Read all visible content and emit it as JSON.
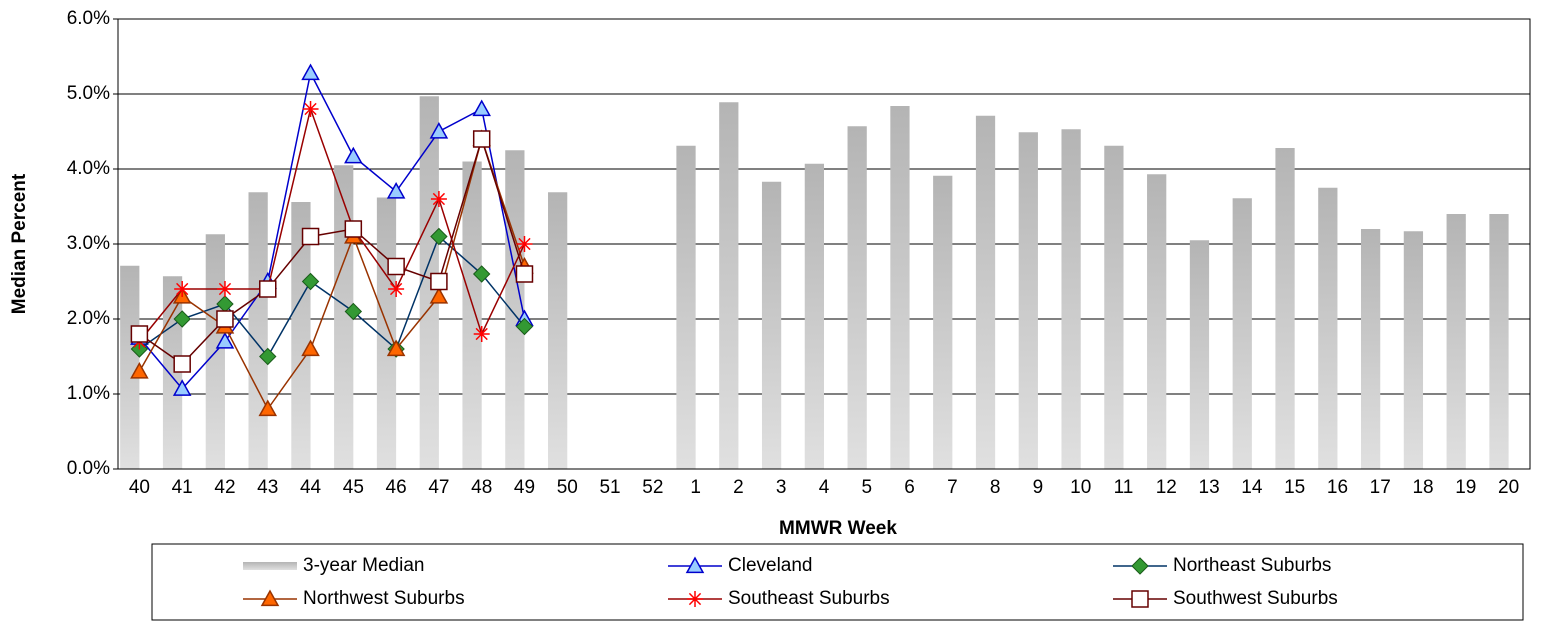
{
  "chart_data": {
    "type": "bar",
    "y_label": "Median Percent",
    "x_label": "MMWR Week",
    "categories": [
      "40",
      "41",
      "42",
      "43",
      "44",
      "45",
      "46",
      "47",
      "48",
      "49",
      "50",
      "51",
      "52",
      "1",
      "2",
      "3",
      "4",
      "5",
      "6",
      "7",
      "8",
      "9",
      "10",
      "11",
      "12",
      "13",
      "14",
      "15",
      "16",
      "17",
      "18",
      "19",
      "20"
    ],
    "ylim": [
      0,
      6
    ],
    "yticks": [
      {
        "value": 0,
        "label": "0.0%"
      },
      {
        "value": 1,
        "label": "1.0%"
      },
      {
        "value": 2,
        "label": "2.0%"
      },
      {
        "value": 3,
        "label": "3.0%"
      },
      {
        "value": 4,
        "label": "4.0%"
      },
      {
        "value": 5,
        "label": "5.0%"
      },
      {
        "value": 6,
        "label": "6.0%"
      }
    ],
    "grid": true,
    "series": [
      {
        "name": "3-year Median",
        "type": "bar",
        "color": "#b4b4b4",
        "values": [
          2.71,
          2.57,
          3.13,
          3.69,
          3.56,
          4.05,
          3.62,
          4.97,
          4.1,
          4.25,
          3.69,
          null,
          null,
          4.31,
          4.89,
          3.83,
          4.07,
          4.57,
          4.84,
          3.91,
          4.71,
          4.49,
          4.53,
          4.31,
          3.93,
          3.05,
          3.61,
          4.28,
          3.75,
          3.2,
          3.17,
          3.4,
          3.4
        ]
      },
      {
        "name": "Cleveland",
        "type": "line",
        "color": "#0000cc",
        "marker": "triangle",
        "marker_color": "#99ccff",
        "values": [
          1.75,
          1.07,
          1.7,
          2.5,
          5.28,
          4.17,
          3.7,
          4.5,
          4.8,
          2.0,
          null,
          null,
          null,
          null,
          null,
          null,
          null,
          null,
          null,
          null,
          null,
          null,
          null,
          null,
          null,
          null,
          null,
          null,
          null,
          null,
          null,
          null,
          null
        ]
      },
      {
        "name": "Northeast Suburbs",
        "type": "line",
        "color": "#003366",
        "marker": "diamond",
        "marker_color": "#339933",
        "values": [
          1.6,
          2.0,
          2.2,
          1.5,
          2.5,
          2.1,
          1.6,
          3.1,
          2.6,
          1.9,
          null,
          null,
          null,
          null,
          null,
          null,
          null,
          null,
          null,
          null,
          null,
          null,
          null,
          null,
          null,
          null,
          null,
          null,
          null,
          null,
          null,
          null,
          null
        ]
      },
      {
        "name": "Northwest Suburbs",
        "type": "line",
        "color": "#993300",
        "marker": "triangle",
        "marker_color": "#ff6600",
        "values": [
          1.3,
          2.3,
          1.9,
          0.8,
          1.6,
          3.1,
          1.6,
          2.3,
          4.4,
          2.7,
          null,
          null,
          null,
          null,
          null,
          null,
          null,
          null,
          null,
          null,
          null,
          null,
          null,
          null,
          null,
          null,
          null,
          null,
          null,
          null,
          null,
          null,
          null
        ]
      },
      {
        "name": "Southeast Suburbs",
        "type": "line",
        "color": "#990000",
        "marker": "star",
        "marker_color": "#ff0000",
        "values": [
          1.7,
          2.4,
          2.4,
          2.4,
          4.8,
          3.2,
          2.4,
          3.6,
          1.8,
          3.0,
          null,
          null,
          null,
          null,
          null,
          null,
          null,
          null,
          null,
          null,
          null,
          null,
          null,
          null,
          null,
          null,
          null,
          null,
          null,
          null,
          null,
          null,
          null
        ]
      },
      {
        "name": "Southwest Suburbs",
        "type": "line",
        "color": "#660000",
        "marker": "square",
        "marker_color": "#ffffff",
        "values": [
          1.8,
          1.4,
          2.0,
          2.4,
          3.1,
          3.2,
          2.7,
          2.5,
          4.4,
          2.6,
          null,
          null,
          null,
          null,
          null,
          null,
          null,
          null,
          null,
          null,
          null,
          null,
          null,
          null,
          null,
          null,
          null,
          null,
          null,
          null,
          null,
          null,
          null
        ]
      }
    ]
  }
}
